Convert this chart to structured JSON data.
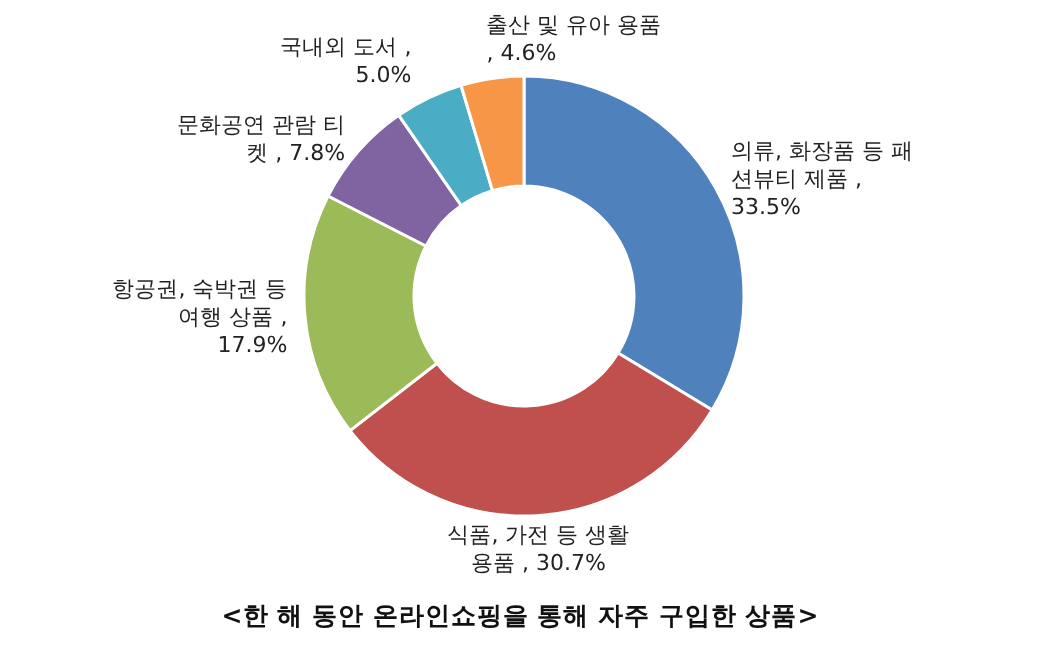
{
  "chart_data": {
    "type": "donut",
    "title": "<한 해 동안 온라인쇼핑을 통해 자주 구입한 상품>",
    "categories": [
      "의류, 화장품 등 패션뷰티 제품",
      "식품, 가전 등 생활용품",
      "항공권, 숙박권 등 여행 상품",
      "문화공연 관람 티켓",
      "국내외 도서",
      "출산 및 유아 용품"
    ],
    "values": [
      33.5,
      30.7,
      17.9,
      7.8,
      5.0,
      4.6
    ],
    "value_labels": [
      ", 33.5%",
      ", 30.7%",
      ", 17.9%",
      ", 7.8%",
      ", 5.0%",
      ", 4.6%"
    ],
    "colors": [
      "#4f81bd",
      "#c0504d",
      "#9bbb59",
      "#8064a2",
      "#4bacc6",
      "#f79646"
    ]
  }
}
